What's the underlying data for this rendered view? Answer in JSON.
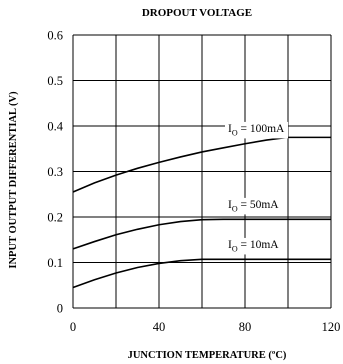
{
  "chart_data": {
    "type": "line",
    "title": "DROPOUT VOLTAGE",
    "xlabel": "JUNCTION TEMPERATURE (ºC)",
    "ylabel": "INPUT OUTPUT DIFFERENTIAL (V)",
    "xlim": [
      0,
      120
    ],
    "ylim": [
      0,
      0.6
    ],
    "x_ticks": [
      "0",
      "40",
      "80",
      "120"
    ],
    "y_ticks": [
      "0",
      "0.1",
      "0.2",
      "0.3",
      "0.4",
      "0.5",
      "0.6"
    ],
    "grid": true,
    "series": [
      {
        "name": "IO = 100mA",
        "label_main": "I",
        "label_sub": "O",
        "label_rest": " = 100mA",
        "x": [
          0,
          10,
          20,
          30,
          40,
          50,
          60,
          70,
          80,
          90,
          100,
          110,
          120
        ],
        "y": [
          0.255,
          0.275,
          0.292,
          0.307,
          0.32,
          0.332,
          0.343,
          0.352,
          0.361,
          0.369,
          0.375,
          0.375,
          0.375
        ]
      },
      {
        "name": "IO = 50mA",
        "label_main": "I",
        "label_sub": "O",
        "label_rest": " = 50mA",
        "x": [
          0,
          10,
          20,
          30,
          40,
          50,
          60,
          70,
          80,
          90,
          100,
          110,
          120
        ],
        "y": [
          0.13,
          0.146,
          0.161,
          0.173,
          0.183,
          0.19,
          0.194,
          0.195,
          0.195,
          0.195,
          0.195,
          0.195,
          0.195
        ]
      },
      {
        "name": "IO = 10mA",
        "label_main": "I",
        "label_sub": "O",
        "label_rest": " = 10mA",
        "x": [
          0,
          10,
          20,
          30,
          40,
          50,
          60,
          70,
          80,
          90,
          100,
          110,
          120
        ],
        "y": [
          0.045,
          0.062,
          0.077,
          0.089,
          0.098,
          0.104,
          0.107,
          0.107,
          0.107,
          0.107,
          0.107,
          0.107,
          0.107
        ]
      }
    ]
  }
}
